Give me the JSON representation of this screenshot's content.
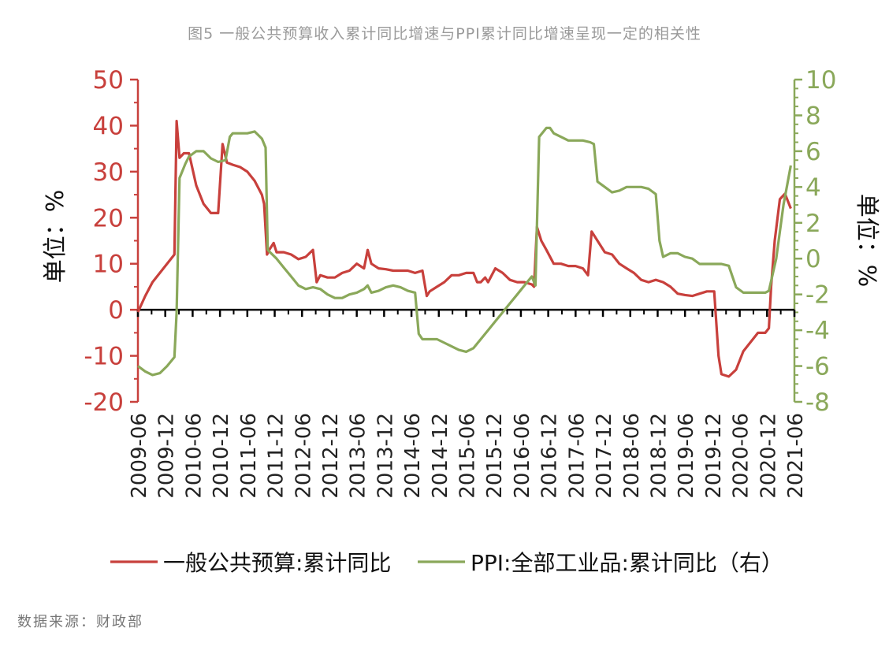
{
  "title": "图5 一般公共预算收入累计同比增速与PPI累计同比增速呈现一定的相关性",
  "source": "数据来源：财政部",
  "colors": {
    "red": "#c8403c",
    "green": "#8aa85a",
    "axis": "#000000"
  },
  "chart_data": {
    "type": "line",
    "x_ticks": [
      "2009-06",
      "2009-12",
      "2010-06",
      "2010-12",
      "2011-06",
      "2011-12",
      "2012-06",
      "2012-12",
      "2013-06",
      "2013-12",
      "2014-06",
      "2014-12",
      "2015-06",
      "2015-12",
      "2016-06",
      "2016-12",
      "2017-06",
      "2017-12",
      "2018-06",
      "2018-12",
      "2019-06",
      "2019-12",
      "2020-06",
      "2020-12",
      "2021-06"
    ],
    "y_left": {
      "label": "单位：%",
      "min": -20,
      "max": 50,
      "ticks": [
        -20,
        -10,
        0,
        10,
        20,
        30,
        40,
        50
      ]
    },
    "y_right": {
      "label": "单位：%",
      "min": -8,
      "max": 10,
      "ticks": [
        -8,
        -6,
        -4,
        -2,
        0,
        2,
        4,
        6,
        8,
        10
      ]
    },
    "legend": [
      {
        "name": "一般公共预算:累计同比",
        "color": "#c8403c"
      },
      {
        "name": "PPI:全部工业品:累计同比（右）",
        "color": "#8aa85a"
      }
    ],
    "series": [
      {
        "name": "一般公共预算:累计同比",
        "axis": "left",
        "points": [
          [
            0,
            -0.5
          ],
          [
            1,
            3
          ],
          [
            2,
            6
          ],
          [
            3,
            8
          ],
          [
            4,
            10
          ],
          [
            5,
            12
          ],
          [
            5.3,
            41
          ],
          [
            5.7,
            33
          ],
          [
            6.3,
            34
          ],
          [
            7,
            34
          ],
          [
            8,
            27
          ],
          [
            9,
            23
          ],
          [
            10,
            21
          ],
          [
            11,
            21
          ],
          [
            11.6,
            36
          ],
          [
            12.2,
            32
          ],
          [
            13,
            31.5
          ],
          [
            14,
            31
          ],
          [
            15,
            30
          ],
          [
            16,
            28
          ],
          [
            17,
            25
          ],
          [
            17.3,
            23
          ],
          [
            17.7,
            12
          ],
          [
            18,
            13
          ],
          [
            18.6,
            14.5
          ],
          [
            19,
            12.5
          ],
          [
            20,
            12.5
          ],
          [
            21,
            12
          ],
          [
            22,
            11
          ],
          [
            23,
            11.5
          ],
          [
            24,
            13
          ],
          [
            24.5,
            6
          ],
          [
            25,
            7.5
          ],
          [
            26,
            7
          ],
          [
            27,
            7
          ],
          [
            28,
            8
          ],
          [
            29,
            8.5
          ],
          [
            30,
            10
          ],
          [
            31,
            9
          ],
          [
            31.5,
            13
          ],
          [
            32,
            10
          ],
          [
            33,
            9
          ],
          [
            34,
            8.8
          ],
          [
            35,
            8.5
          ],
          [
            36,
            8.5
          ],
          [
            37,
            8.5
          ],
          [
            38,
            8
          ],
          [
            39,
            8.5
          ],
          [
            39.6,
            3
          ],
          [
            40,
            4
          ],
          [
            41,
            5
          ],
          [
            42,
            6
          ],
          [
            43,
            7.5
          ],
          [
            44,
            7.5
          ],
          [
            45,
            8
          ],
          [
            46,
            8
          ],
          [
            46.5,
            6
          ],
          [
            47,
            6
          ],
          [
            47.6,
            7
          ],
          [
            48,
            6
          ],
          [
            49,
            9
          ],
          [
            50,
            8
          ],
          [
            51,
            6.5
          ],
          [
            52,
            6
          ],
          [
            53,
            6
          ],
          [
            54,
            5.5
          ],
          [
            54.3,
            5
          ],
          [
            54.7,
            18
          ],
          [
            55.3,
            15
          ],
          [
            56,
            13
          ],
          [
            57,
            10
          ],
          [
            58,
            10
          ],
          [
            59,
            9.5
          ],
          [
            60,
            9.5
          ],
          [
            61,
            9
          ],
          [
            61.7,
            7.5
          ],
          [
            62.2,
            17
          ],
          [
            63,
            15
          ],
          [
            64,
            12.5
          ],
          [
            65,
            12
          ],
          [
            66,
            10
          ],
          [
            67,
            9
          ],
          [
            68,
            8
          ],
          [
            69,
            6.5
          ],
          [
            70,
            6
          ],
          [
            71,
            6.5
          ],
          [
            72,
            6
          ],
          [
            73,
            5
          ],
          [
            74,
            3.5
          ],
          [
            75,
            3.2
          ],
          [
            76,
            3
          ],
          [
            77,
            3.5
          ],
          [
            78,
            4
          ],
          [
            79,
            4
          ],
          [
            79.6,
            -10
          ],
          [
            80,
            -14
          ],
          [
            81,
            -14.5
          ],
          [
            82,
            -13
          ],
          [
            83,
            -9
          ],
          [
            84,
            -7
          ],
          [
            85,
            -5
          ],
          [
            86,
            -5
          ],
          [
            86.5,
            -4
          ],
          [
            86.8,
            5
          ],
          [
            87.3,
            15
          ],
          [
            88,
            24
          ],
          [
            88.7,
            25.2
          ],
          [
            89.5,
            22
          ]
        ]
      },
      {
        "name": "PPI:全部工业品:累计同比（右）",
        "axis": "right",
        "points": [
          [
            0,
            -6
          ],
          [
            1,
            -6.3
          ],
          [
            2,
            -6.5
          ],
          [
            3,
            -6.4
          ],
          [
            4,
            -6
          ],
          [
            5,
            -5.5
          ],
          [
            5.3,
            -3
          ],
          [
            5.7,
            4.5
          ],
          [
            6.5,
            5.3
          ],
          [
            7,
            5.7
          ],
          [
            8,
            6
          ],
          [
            9,
            6
          ],
          [
            10,
            5.6
          ],
          [
            11,
            5.4
          ],
          [
            12,
            5.5
          ],
          [
            12.6,
            6.8
          ],
          [
            13,
            7.0
          ],
          [
            14,
            7.0
          ],
          [
            15,
            7.0
          ],
          [
            16,
            7.1
          ],
          [
            17,
            6.7
          ],
          [
            17.5,
            6.2
          ],
          [
            17.8,
            0.5
          ],
          [
            18,
            0.4
          ],
          [
            19,
            0
          ],
          [
            20,
            -0.5
          ],
          [
            21,
            -1
          ],
          [
            22,
            -1.5
          ],
          [
            23,
            -1.7
          ],
          [
            24,
            -1.6
          ],
          [
            25,
            -1.7
          ],
          [
            26,
            -2
          ],
          [
            27,
            -2.2
          ],
          [
            28,
            -2.2
          ],
          [
            29,
            -2
          ],
          [
            30,
            -1.9
          ],
          [
            31,
            -1.7
          ],
          [
            31.5,
            -1.5
          ],
          [
            32,
            -1.9
          ],
          [
            33,
            -1.8
          ],
          [
            34,
            -1.6
          ],
          [
            35,
            -1.5
          ],
          [
            36,
            -1.6
          ],
          [
            37,
            -1.8
          ],
          [
            38,
            -1.9
          ],
          [
            38.5,
            -4.2
          ],
          [
            39,
            -4.5
          ],
          [
            40,
            -4.5
          ],
          [
            41,
            -4.5
          ],
          [
            42,
            -4.7
          ],
          [
            43,
            -4.9
          ],
          [
            44,
            -5.1
          ],
          [
            45,
            -5.2
          ],
          [
            46,
            -5.0
          ],
          [
            47,
            -4.5
          ],
          [
            48,
            -4.0
          ],
          [
            49,
            -3.5
          ],
          [
            50,
            -3.0
          ],
          [
            51,
            -2.5
          ],
          [
            52,
            -2.0
          ],
          [
            53,
            -1.5
          ],
          [
            54,
            -1.0
          ],
          [
            54.5,
            -1.5
          ],
          [
            55,
            6.8
          ],
          [
            56,
            7.3
          ],
          [
            56.5,
            7.3
          ],
          [
            57,
            7.0
          ],
          [
            58,
            6.8
          ],
          [
            59,
            6.6
          ],
          [
            60,
            6.6
          ],
          [
            61,
            6.6
          ],
          [
            62,
            6.5
          ],
          [
            62.5,
            6.4
          ],
          [
            63,
            4.3
          ],
          [
            64,
            4.0
          ],
          [
            65,
            3.7
          ],
          [
            66,
            3.8
          ],
          [
            67,
            4.0
          ],
          [
            68,
            4.0
          ],
          [
            69,
            4.0
          ],
          [
            70,
            3.9
          ],
          [
            71,
            3.6
          ],
          [
            71.5,
            1.0
          ],
          [
            72,
            0.1
          ],
          [
            73,
            0.3
          ],
          [
            74,
            0.3
          ],
          [
            75,
            0.1
          ],
          [
            76,
            0
          ],
          [
            77,
            -0.3
          ],
          [
            78,
            -0.3
          ],
          [
            79,
            -0.3
          ],
          [
            80,
            -0.3
          ],
          [
            81,
            -0.4
          ],
          [
            82,
            -1.6
          ],
          [
            83,
            -1.9
          ],
          [
            84,
            -1.9
          ],
          [
            85,
            -1.9
          ],
          [
            86,
            -1.9
          ],
          [
            86.5,
            -1.8
          ],
          [
            87.5,
            0
          ],
          [
            88.5,
            3
          ],
          [
            89.5,
            5.2
          ]
        ]
      }
    ]
  }
}
